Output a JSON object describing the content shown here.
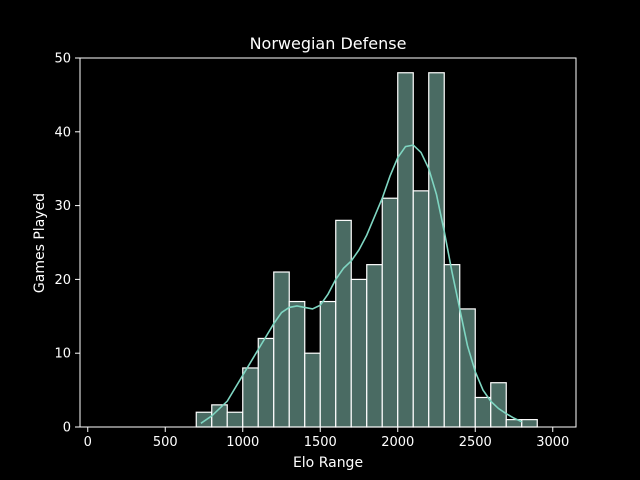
{
  "chart_data": {
    "type": "bar",
    "title": "Norwegian Defense",
    "xlabel": "Elo Range",
    "ylabel": "Games Played",
    "xlim": [
      -50,
      3150
    ],
    "ylim": [
      0,
      50
    ],
    "xticks": [
      0,
      500,
      1000,
      1500,
      2000,
      2500,
      3000
    ],
    "yticks": [
      0,
      10,
      20,
      30,
      40,
      50
    ],
    "grid": false,
    "legend": "none",
    "colors": {
      "background": "#000000",
      "bar_fill": "#4a6b63",
      "bar_edge": "#ffffff",
      "kde_line": "#7fd6c2",
      "axes": "#ffffff"
    },
    "bins": [
      {
        "x0": 100,
        "x1": 200,
        "count": 0
      },
      {
        "x0": 200,
        "x1": 300,
        "count": 0
      },
      {
        "x0": 300,
        "x1": 400,
        "count": 0
      },
      {
        "x0": 400,
        "x1": 500,
        "count": 0
      },
      {
        "x0": 500,
        "x1": 600,
        "count": 0
      },
      {
        "x0": 600,
        "x1": 700,
        "count": 0
      },
      {
        "x0": 700,
        "x1": 800,
        "count": 2
      },
      {
        "x0": 800,
        "x1": 900,
        "count": 3
      },
      {
        "x0": 900,
        "x1": 1000,
        "count": 2
      },
      {
        "x0": 1000,
        "x1": 1100,
        "count": 8
      },
      {
        "x0": 1100,
        "x1": 1200,
        "count": 12
      },
      {
        "x0": 1200,
        "x1": 1300,
        "count": 21
      },
      {
        "x0": 1300,
        "x1": 1400,
        "count": 17
      },
      {
        "x0": 1400,
        "x1": 1500,
        "count": 10
      },
      {
        "x0": 1500,
        "x1": 1600,
        "count": 17
      },
      {
        "x0": 1600,
        "x1": 1700,
        "count": 28
      },
      {
        "x0": 1700,
        "x1": 1800,
        "count": 20
      },
      {
        "x0": 1800,
        "x1": 1900,
        "count": 22
      },
      {
        "x0": 1900,
        "x1": 2000,
        "count": 31
      },
      {
        "x0": 2000,
        "x1": 2100,
        "count": 48
      },
      {
        "x0": 2100,
        "x1": 2200,
        "count": 32
      },
      {
        "x0": 2200,
        "x1": 2300,
        "count": 48
      },
      {
        "x0": 2300,
        "x1": 2400,
        "count": 22
      },
      {
        "x0": 2400,
        "x1": 2500,
        "count": 16
      },
      {
        "x0": 2500,
        "x1": 2600,
        "count": 4
      },
      {
        "x0": 2600,
        "x1": 2700,
        "count": 6
      },
      {
        "x0": 2700,
        "x1": 2800,
        "count": 1
      },
      {
        "x0": 2800,
        "x1": 2900,
        "count": 1
      }
    ],
    "kde": {
      "x": [
        730,
        800,
        900,
        1000,
        1100,
        1200,
        1250,
        1300,
        1350,
        1400,
        1450,
        1500,
        1550,
        1600,
        1650,
        1700,
        1750,
        1800,
        1850,
        1900,
        1950,
        2000,
        2050,
        2100,
        2150,
        2200,
        2250,
        2300,
        2350,
        2400,
        2450,
        2500,
        2550,
        2600,
        2650,
        2700,
        2750,
        2800
      ],
      "y": [
        0.5,
        1.5,
        3.5,
        7.0,
        10.5,
        14.0,
        15.5,
        16.2,
        16.4,
        16.2,
        16.0,
        16.5,
        18.0,
        20.0,
        21.5,
        22.5,
        24.0,
        26.0,
        28.5,
        31.0,
        34.0,
        36.5,
        38.0,
        38.2,
        37.2,
        35.0,
        31.5,
        26.5,
        21.0,
        16.0,
        11.0,
        7.5,
        5.0,
        3.5,
        2.5,
        1.8,
        1.2,
        0.7
      ]
    }
  }
}
